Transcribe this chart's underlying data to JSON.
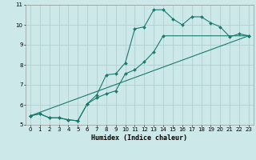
{
  "xlabel": "Humidex (Indice chaleur)",
  "bg_color": "#cce8e8",
  "grid_color": "#b0d0d0",
  "line_color": "#1a7a6e",
  "xlim": [
    -0.5,
    23.5
  ],
  "ylim": [
    5,
    11
  ],
  "xticks": [
    0,
    1,
    2,
    3,
    4,
    5,
    6,
    7,
    8,
    9,
    10,
    11,
    12,
    13,
    14,
    15,
    16,
    17,
    18,
    19,
    20,
    21,
    22,
    23
  ],
  "yticks": [
    5,
    6,
    7,
    8,
    9,
    10,
    11
  ],
  "line1_x": [
    0,
    1,
    2,
    3,
    4,
    5,
    6,
    7,
    8,
    9,
    10,
    11,
    12,
    13,
    14,
    15,
    16,
    17,
    18,
    19,
    20,
    21,
    22,
    23
  ],
  "line1_y": [
    5.45,
    5.55,
    5.35,
    5.35,
    5.25,
    5.2,
    6.05,
    6.5,
    7.5,
    7.55,
    8.1,
    9.8,
    9.9,
    10.75,
    10.75,
    10.3,
    10.0,
    10.4,
    10.4,
    10.1,
    9.9,
    9.4,
    9.55,
    9.45
  ],
  "line2_x": [
    0,
    1,
    2,
    3,
    4,
    5,
    6,
    7,
    8,
    9,
    10,
    11,
    12,
    13,
    14,
    23
  ],
  "line2_y": [
    5.45,
    5.55,
    5.35,
    5.35,
    5.25,
    5.2,
    6.05,
    6.35,
    6.55,
    6.7,
    7.55,
    7.75,
    8.15,
    8.65,
    9.45,
    9.45
  ],
  "line3_x": [
    0,
    23
  ],
  "line3_y": [
    5.45,
    9.45
  ]
}
